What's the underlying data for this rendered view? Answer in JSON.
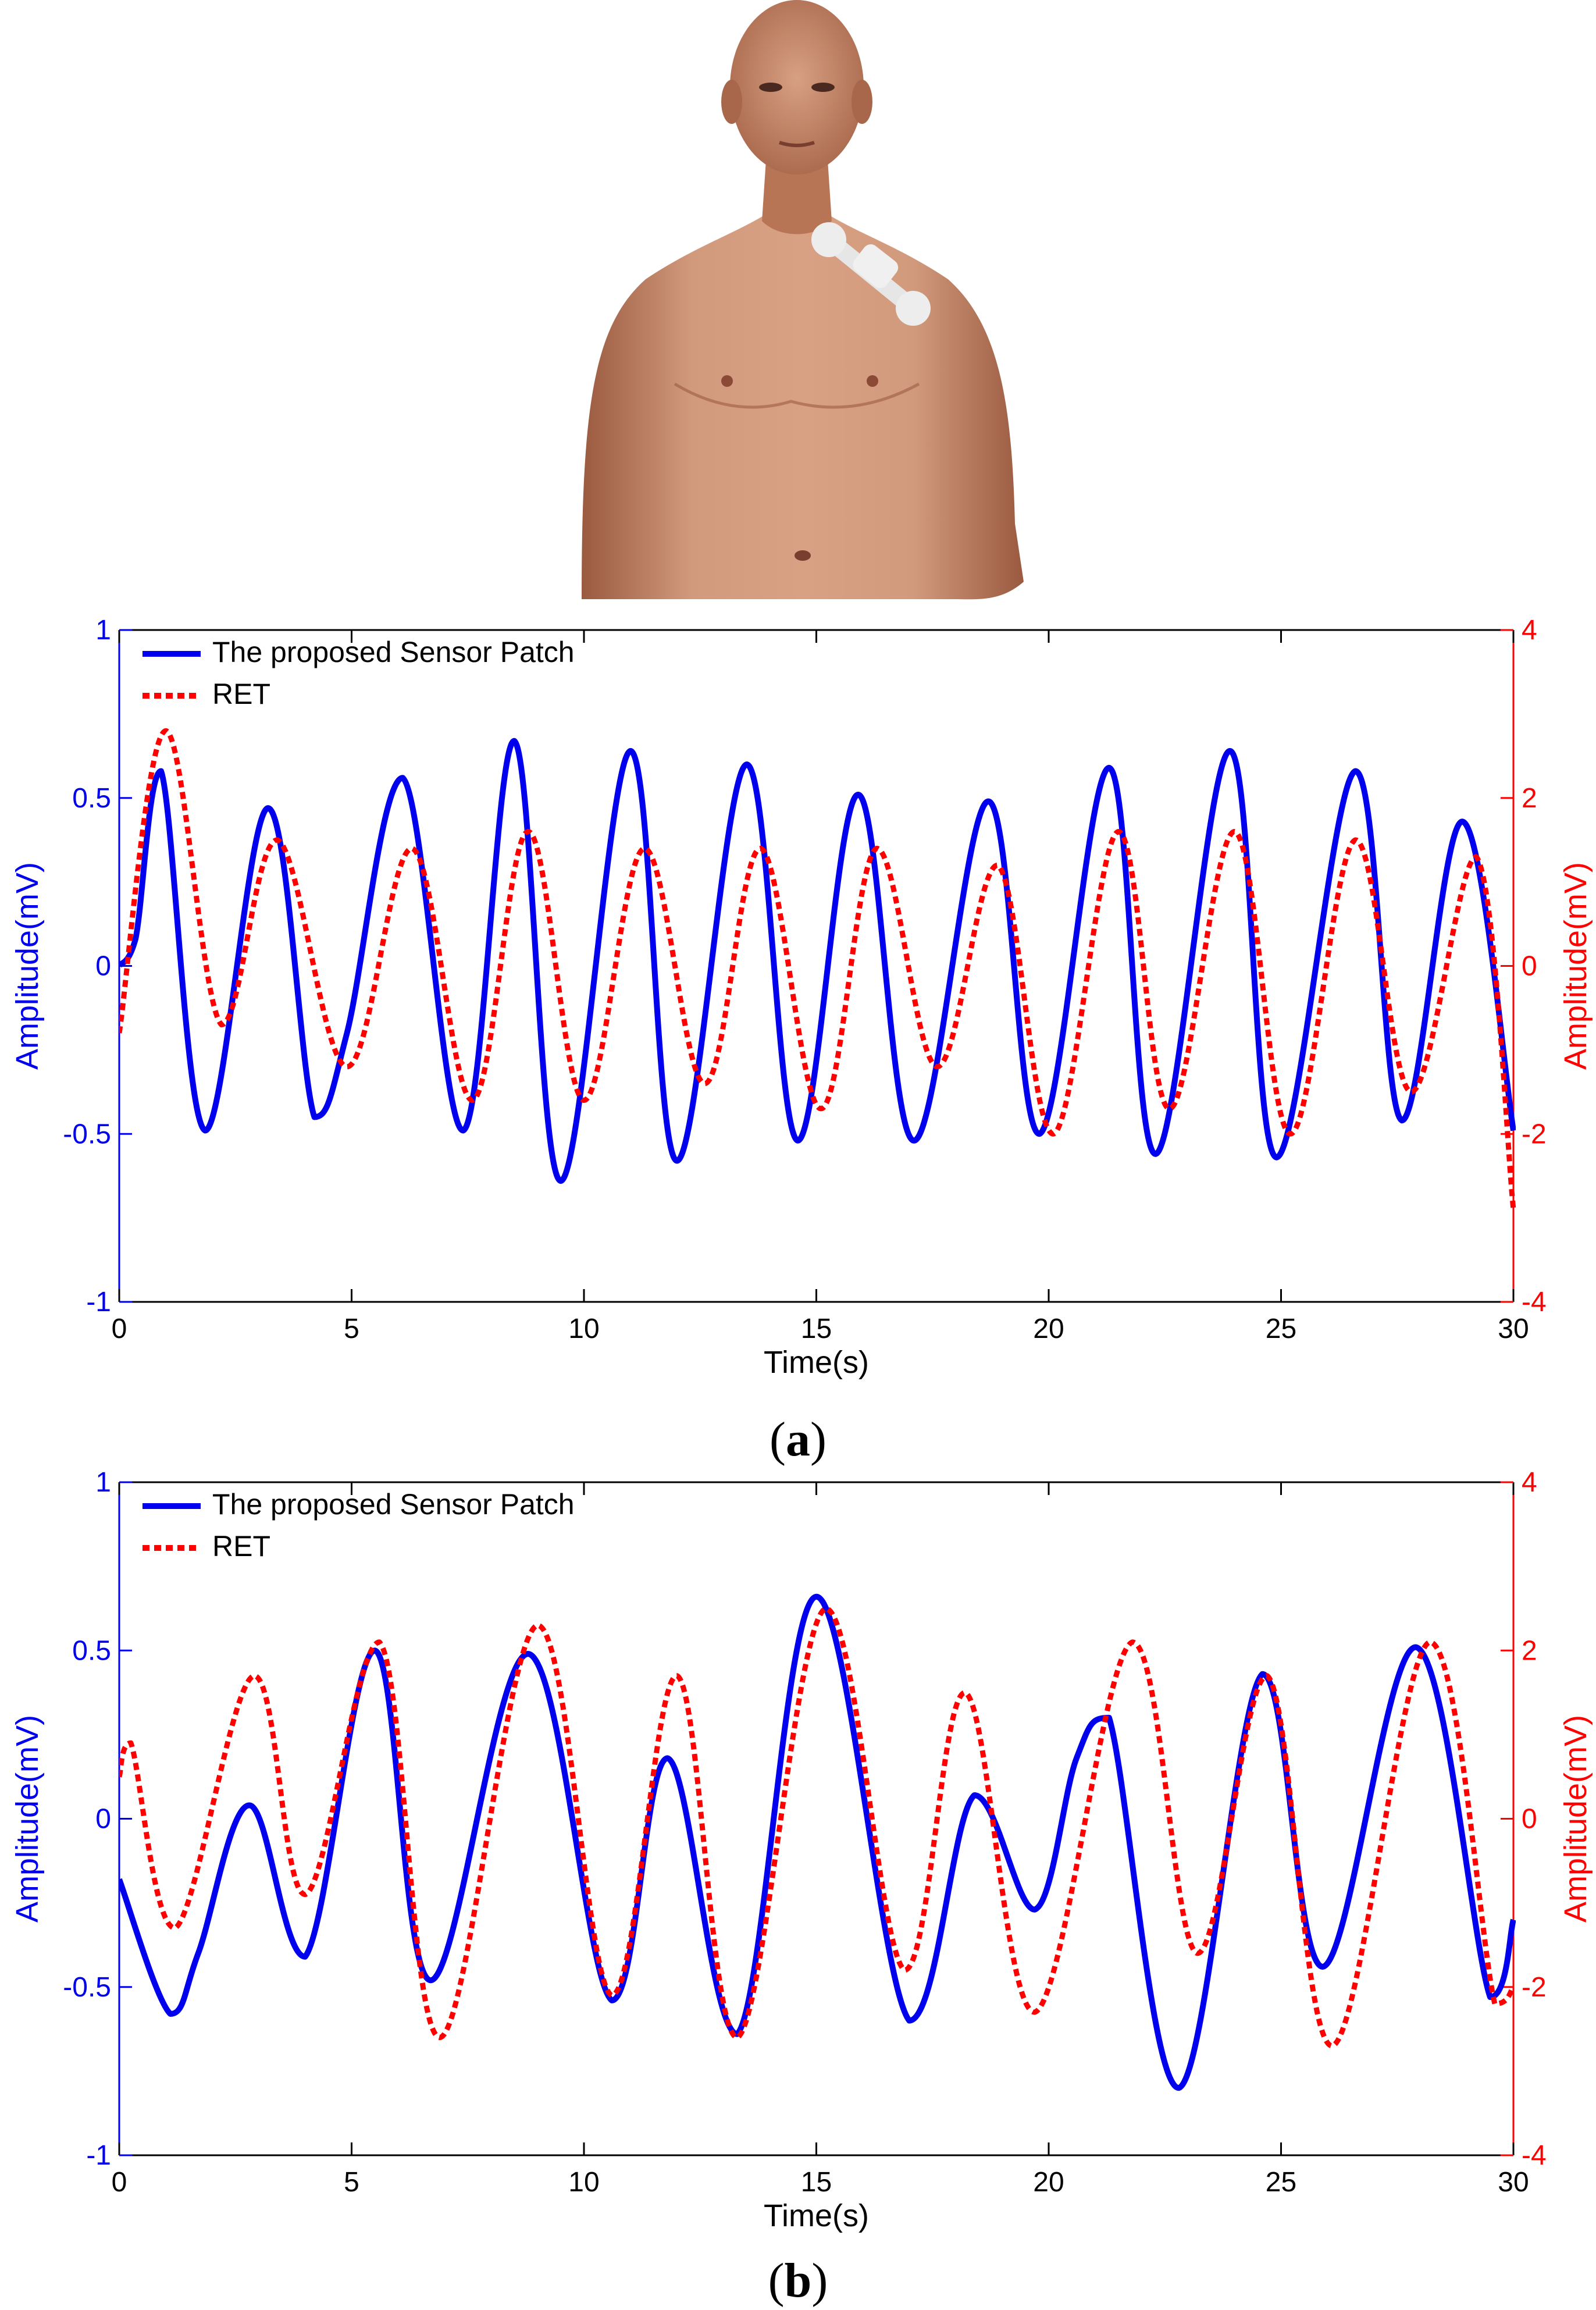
{
  "figure": {
    "panel_labels": [
      "a",
      "b"
    ]
  },
  "colors": {
    "sensor": "#0000ee",
    "ret": "#ff0000",
    "axis": "#000000",
    "skin": "#c9896a",
    "patch": "#e6e6e6"
  },
  "chart_data": [
    {
      "type": "line",
      "panel": "a",
      "xlabel": "Time(s)",
      "ylabel_left": "Amplitude(mV)",
      "ylabel_right": "Amplitude(mV)",
      "xlim": [
        0,
        30
      ],
      "ylim_left": [
        -1,
        1
      ],
      "ylim_right": [
        -4,
        4
      ],
      "xticks": [
        "0",
        "5",
        "10",
        "15",
        "20",
        "25",
        "30"
      ],
      "yticks_left": [
        "-1",
        "-0.5",
        "0",
        "0.5",
        "1"
      ],
      "yticks_right": [
        "-4",
        "-2",
        "0",
        "2",
        "4"
      ],
      "legend_position": "top-left",
      "grid": false,
      "series": [
        {
          "name": "The proposed Sensor Patch",
          "axis": "left",
          "style": "solid",
          "x": [
            0,
            0.35,
            0.9,
            1.85,
            3.2,
            4.2,
            4.9,
            6.1,
            7.4,
            8.5,
            9.5,
            11.0,
            12.0,
            13.5,
            14.6,
            15.9,
            17.1,
            18.7,
            19.8,
            21.3,
            22.3,
            23.9,
            24.9,
            26.6,
            27.6,
            28.9,
            30.0
          ],
          "y": [
            0.0,
            0.08,
            0.58,
            -0.49,
            0.47,
            -0.45,
            -0.2,
            0.56,
            -0.49,
            0.67,
            -0.64,
            0.64,
            -0.58,
            0.6,
            -0.52,
            0.51,
            -0.52,
            0.49,
            -0.5,
            0.59,
            -0.56,
            0.64,
            -0.57,
            0.58,
            -0.46,
            0.43,
            -0.49
          ]
        },
        {
          "name": "RET",
          "axis": "right",
          "style": "dotted",
          "x": [
            0,
            1.0,
            2.2,
            3.4,
            4.9,
            6.3,
            7.6,
            8.8,
            10.0,
            11.3,
            12.6,
            13.8,
            15.1,
            16.3,
            17.6,
            18.9,
            20.1,
            21.5,
            22.6,
            24.0,
            25.2,
            26.6,
            27.8,
            29.2,
            30.0
          ],
          "y": [
            -0.8,
            2.8,
            -0.7,
            1.5,
            -1.2,
            1.4,
            -1.6,
            1.6,
            -1.6,
            1.4,
            -1.4,
            1.4,
            -1.7,
            1.4,
            -1.2,
            1.2,
            -2.0,
            1.6,
            -1.7,
            1.6,
            -2.0,
            1.5,
            -1.5,
            1.3,
            -2.9
          ]
        }
      ]
    },
    {
      "type": "line",
      "panel": "b",
      "xlabel": "Time(s)",
      "ylabel_left": "Amplitude(mV)",
      "ylabel_right": "Amplitude(mV)",
      "xlim": [
        0,
        30
      ],
      "ylim_left": [
        -1,
        1
      ],
      "ylim_right": [
        -4,
        4
      ],
      "xticks": [
        "0",
        "5",
        "10",
        "15",
        "20",
        "25",
        "30"
      ],
      "yticks_left": [
        "-1",
        "-0.5",
        "0",
        "0.5",
        "1"
      ],
      "yticks_right": [
        "-4",
        "-2",
        "0",
        "2",
        "4"
      ],
      "legend_position": "top-left",
      "grid": false,
      "series": [
        {
          "name": "The proposed Sensor Patch",
          "axis": "left",
          "style": "solid",
          "x": [
            0,
            1.1,
            1.7,
            2.8,
            4.0,
            5.5,
            6.7,
            8.8,
            10.6,
            11.8,
            13.3,
            15.0,
            17.0,
            18.4,
            19.7,
            20.6,
            21.3,
            22.8,
            24.6,
            25.9,
            27.9,
            29.5,
            30.0
          ],
          "y": [
            -0.18,
            -0.58,
            -0.4,
            0.04,
            -0.41,
            0.5,
            -0.48,
            0.49,
            -0.54,
            0.18,
            -0.64,
            0.66,
            -0.6,
            0.07,
            -0.27,
            0.18,
            0.3,
            -0.8,
            0.43,
            -0.44,
            0.51,
            -0.53,
            -0.3
          ]
        },
        {
          "name": "RET",
          "axis": "right",
          "style": "dotted",
          "x": [
            0,
            0.25,
            1.2,
            2.9,
            4.0,
            5.6,
            6.9,
            9.0,
            10.6,
            12.0,
            13.3,
            15.2,
            16.9,
            18.2,
            19.7,
            21.8,
            23.2,
            24.7,
            26.1,
            28.2,
            29.6,
            30.0
          ],
          "y": [
            0.5,
            0.9,
            -1.3,
            1.7,
            -0.9,
            2.1,
            -2.6,
            2.3,
            -2.1,
            1.7,
            -2.6,
            2.5,
            -1.8,
            1.5,
            -2.3,
            2.1,
            -1.6,
            1.7,
            -2.7,
            2.1,
            -2.2,
            -2.0
          ]
        }
      ]
    }
  ]
}
